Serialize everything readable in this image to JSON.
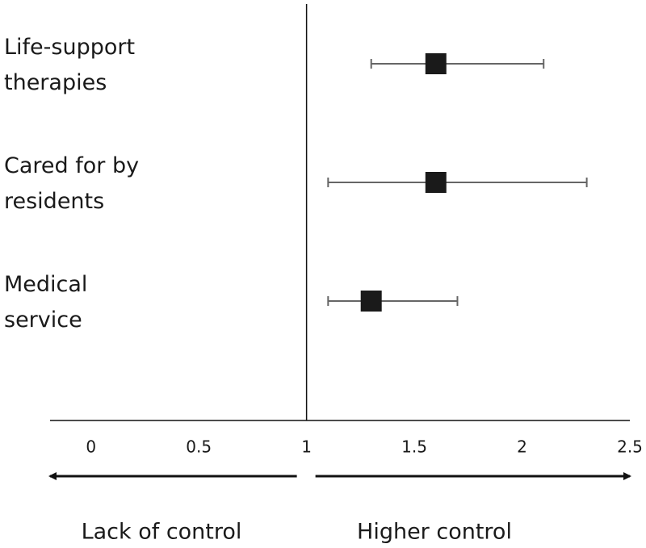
{
  "chart_data": {
    "type": "forest",
    "categories": [
      [
        "Life-support",
        "therapies"
      ],
      [
        "Cared for by",
        "residents"
      ],
      [
        "Medical",
        "service"
      ]
    ],
    "values": [
      1.6,
      1.6,
      1.3
    ],
    "ci_low": [
      1.3,
      1.1,
      1.1
    ],
    "ci_high": [
      2.1,
      2.3,
      1.7
    ],
    "color": "#1a1a1a",
    "xlim": [
      -0.19,
      2.5
    ],
    "xticks": [
      0,
      0.5,
      1,
      1.5,
      2,
      2.5
    ],
    "ref_line": 1,
    "left_label": "Lack of control",
    "right_label": "Higher control"
  }
}
